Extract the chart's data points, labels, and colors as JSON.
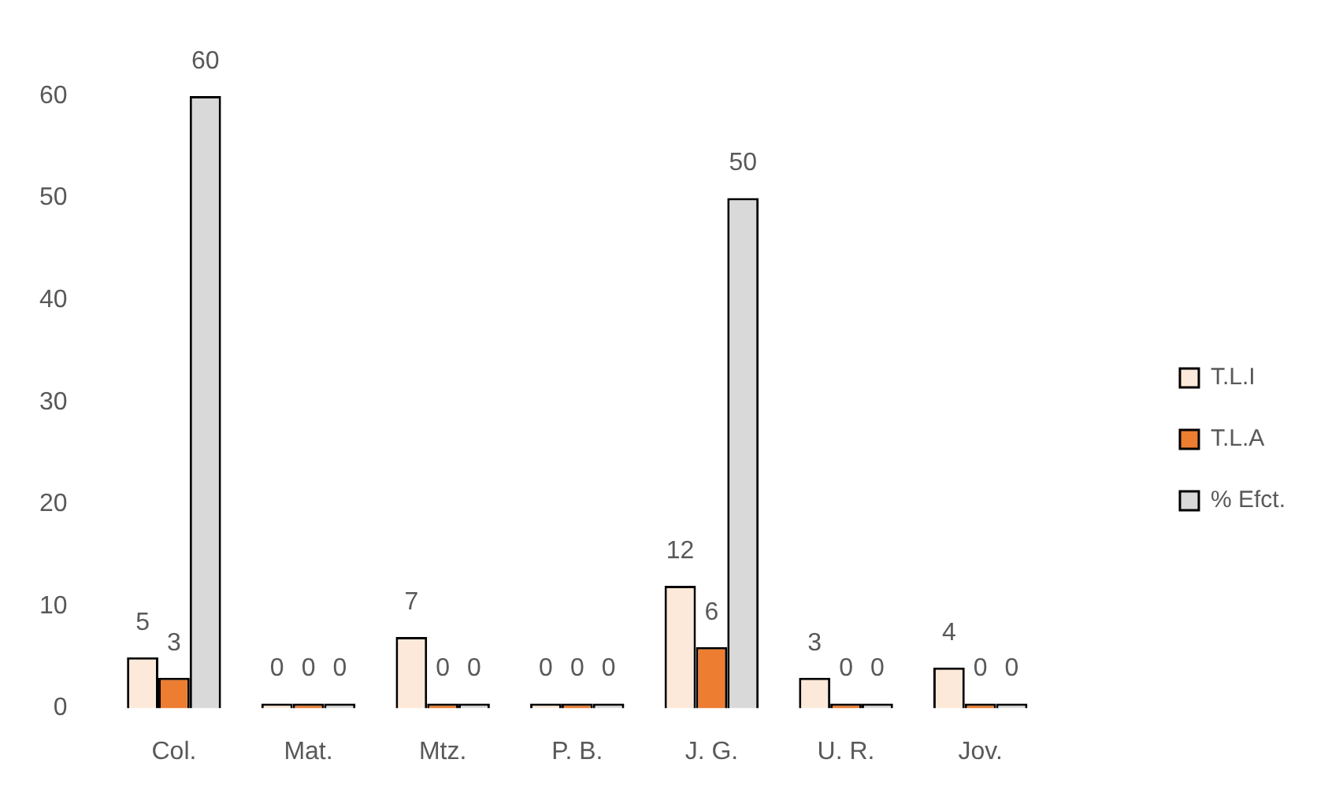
{
  "chart_data": {
    "type": "bar",
    "categories": [
      "Col.",
      "Mat.",
      "Mtz.",
      "P. B.",
      "J. G.",
      "U. R.",
      "Jov."
    ],
    "series": [
      {
        "name": "T.L.I",
        "color": "#fde9d9",
        "values": [
          5,
          0,
          7,
          0,
          12,
          3,
          4
        ]
      },
      {
        "name": "T.L.A",
        "color": "#ed7d31",
        "values": [
          3,
          0,
          0,
          0,
          6,
          0,
          0
        ]
      },
      {
        "name": "% Efct.",
        "color": "#d9d9d9",
        "values": [
          60,
          0,
          0,
          0,
          50,
          0,
          0
        ]
      }
    ],
    "ylim": [
      0,
      60
    ],
    "yticks": [
      0,
      10,
      20,
      30,
      40,
      50,
      60
    ],
    "legend": "right",
    "data_labels": true
  }
}
